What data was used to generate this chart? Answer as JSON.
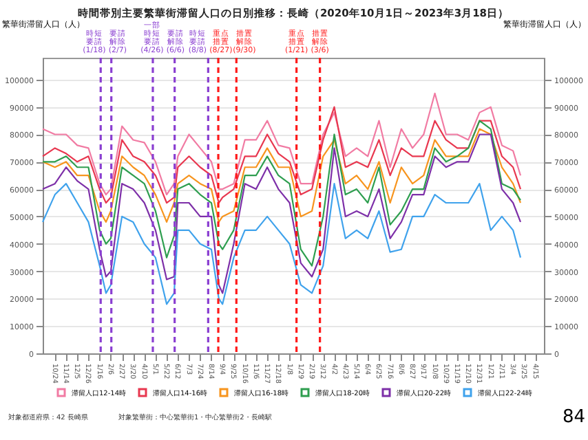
{
  "chart_data": {
    "type": "line",
    "title": "時間帯別主要繁華街滞留人口の日別推移：長崎（2020年10月1日～2023年3月18日）",
    "ylabel": "繁華街滞留人口（人）",
    "y2label": "繁華街滞留人口（人）",
    "x": [
      "2020-10-01",
      "2020-10-24",
      "2020-11-14",
      "2020-12-05",
      "2020-12-26",
      "2021-01-16",
      "2021-01-28",
      "2021-02-06",
      "2021-02-27",
      "2021-03-20",
      "2021-04-10",
      "2021-05-01",
      "2021-05-22",
      "2021-06-05",
      "2021-06-12",
      "2021-07-03",
      "2021-07-24",
      "2021-08-14",
      "2021-08-28",
      "2021-09-04",
      "2021-09-25",
      "2021-10-16",
      "2021-11-06",
      "2021-11-27",
      "2021-12-18",
      "2022-01-08",
      "2022-01-29",
      "2022-02-19",
      "2022-03-12",
      "2022-04-02",
      "2022-04-23",
      "2022-05-14",
      "2022-06-04",
      "2022-06-25",
      "2022-07-16",
      "2022-08-06",
      "2022-08-27",
      "2022-09-17",
      "2022-10-08",
      "2022-10-29",
      "2022-11-19",
      "2022-12-10",
      "2022-12-31",
      "2023-01-21",
      "2023-02-11",
      "2023-03-04",
      "2023-03-18"
    ],
    "series": [
      {
        "name": "滞留人口12-14時",
        "color": "#f17ba3",
        "values": [
          82000,
          80000,
          80000,
          76000,
          75000,
          62000,
          58000,
          60000,
          83000,
          78000,
          77000,
          70000,
          58000,
          62000,
          72000,
          80000,
          75000,
          70000,
          60000,
          60000,
          62000,
          78000,
          78000,
          85000,
          76000,
          75000,
          62000,
          62000,
          80000,
          88000,
          72000,
          75000,
          72000,
          85000,
          68000,
          82000,
          75000,
          80000,
          95000,
          80000,
          80000,
          78000,
          88000,
          90000,
          76000,
          74000,
          65000
        ]
      },
      {
        "name": "滞留人口14-16時",
        "color": "#e8374f",
        "values": [
          72000,
          75000,
          73000,
          70000,
          72000,
          60000,
          55000,
          57000,
          78000,
          72000,
          70000,
          65000,
          55000,
          57000,
          68000,
          72000,
          68000,
          65000,
          55000,
          57000,
          60000,
          72000,
          72000,
          80000,
          73000,
          70000,
          58000,
          60000,
          78000,
          90000,
          68000,
          70000,
          68000,
          78000,
          65000,
          75000,
          72000,
          72000,
          85000,
          78000,
          75000,
          75000,
          85000,
          85000,
          72000,
          68000,
          60000
        ]
      },
      {
        "name": "滞留人口16-18時",
        "color": "#f7941d",
        "values": [
          70000,
          68000,
          70000,
          65000,
          65000,
          52000,
          48000,
          52000,
          72000,
          68000,
          65000,
          58000,
          48000,
          55000,
          62000,
          65000,
          62000,
          60000,
          48000,
          50000,
          52000,
          68000,
          68000,
          75000,
          68000,
          68000,
          50000,
          52000,
          72000,
          78000,
          62000,
          65000,
          60000,
          70000,
          55000,
          68000,
          62000,
          65000,
          78000,
          72000,
          72000,
          72000,
          82000,
          80000,
          68000,
          62000,
          55000
        ]
      },
      {
        "name": "滞留人口18-20時",
        "color": "#2e9e4f",
        "values": [
          70000,
          70000,
          72000,
          68000,
          68000,
          45000,
          40000,
          42000,
          68000,
          65000,
          62000,
          52000,
          35000,
          43000,
          60000,
          62000,
          58000,
          55000,
          40000,
          38000,
          45000,
          65000,
          65000,
          72000,
          65000,
          62000,
          38000,
          32000,
          50000,
          80000,
          58000,
          60000,
          55000,
          68000,
          47000,
          52000,
          60000,
          60000,
          75000,
          70000,
          72000,
          75000,
          85000,
          82000,
          62000,
          60000,
          56000
        ]
      },
      {
        "name": "滞留人口20-22時",
        "color": "#7d2fa8",
        "values": [
          60000,
          62000,
          68000,
          63000,
          60000,
          38000,
          28000,
          30000,
          62000,
          60000,
          55000,
          45000,
          27000,
          28000,
          55000,
          55000,
          50000,
          50000,
          25000,
          22000,
          40000,
          62000,
          60000,
          68000,
          60000,
          55000,
          33000,
          28000,
          38000,
          75000,
          50000,
          52000,
          50000,
          60000,
          42000,
          48000,
          58000,
          58000,
          72000,
          68000,
          70000,
          70000,
          80000,
          80000,
          60000,
          55000,
          48000
        ]
      },
      {
        "name": "滞留人口22-24時",
        "color": "#3fa2ec",
        "values": [
          48000,
          58000,
          62000,
          55000,
          48000,
          32000,
          22000,
          25000,
          50000,
          48000,
          40000,
          35000,
          18000,
          22000,
          45000,
          45000,
          40000,
          38000,
          20000,
          18000,
          35000,
          45000,
          45000,
          50000,
          45000,
          40000,
          25000,
          22000,
          32000,
          62000,
          42000,
          45000,
          42000,
          52000,
          37000,
          38000,
          50000,
          50000,
          58000,
          55000,
          55000,
          55000,
          62000,
          45000,
          50000,
          45000,
          35000
        ]
      }
    ],
    "xlim": [
      "2020-10-01",
      "2023-05-01"
    ],
    "xticks": [
      {
        "value": "2020-10-24",
        "label": "10/24"
      },
      {
        "value": "2020-11-14",
        "label": "11/14"
      },
      {
        "value": "2020-12-05",
        "label": "12/5"
      },
      {
        "value": "2020-12-26",
        "label": "12/26"
      },
      {
        "value": "2021-01-16",
        "label": "1/16"
      },
      {
        "value": "2021-02-06",
        "label": "2/6"
      },
      {
        "value": "2021-02-27",
        "label": "2/27"
      },
      {
        "value": "2021-03-20",
        "label": "3/20"
      },
      {
        "value": "2021-04-10",
        "label": "4/10"
      },
      {
        "value": "2021-05-01",
        "label": "5/1"
      },
      {
        "value": "2021-05-22",
        "label": "5/22"
      },
      {
        "value": "2021-06-12",
        "label": "6/12"
      },
      {
        "value": "2021-07-03",
        "label": "7/3"
      },
      {
        "value": "2021-07-24",
        "label": "7/24"
      },
      {
        "value": "2021-08-14",
        "label": "8/14"
      },
      {
        "value": "2021-09-04",
        "label": "9/4"
      },
      {
        "value": "2021-09-25",
        "label": "9/25"
      },
      {
        "value": "2021-10-16",
        "label": "10/16"
      },
      {
        "value": "2021-11-06",
        "label": "11/6"
      },
      {
        "value": "2021-11-27",
        "label": "11/27"
      },
      {
        "value": "2021-12-18",
        "label": "12/18"
      },
      {
        "value": "2022-01-08",
        "label": "1/8"
      },
      {
        "value": "2022-01-29",
        "label": "1/29"
      },
      {
        "value": "2022-02-19",
        "label": "2/19"
      },
      {
        "value": "2022-03-12",
        "label": "3/12"
      },
      {
        "value": "2022-04-02",
        "label": "4/2"
      },
      {
        "value": "2022-04-23",
        "label": "4/23"
      },
      {
        "value": "2022-05-14",
        "label": "5/14"
      },
      {
        "value": "2022-06-04",
        "label": "6/4"
      },
      {
        "value": "2022-06-25",
        "label": "6/25"
      },
      {
        "value": "2022-07-16",
        "label": "7/16"
      },
      {
        "value": "2022-08-06",
        "label": "8/6"
      },
      {
        "value": "2022-08-27",
        "label": "8/27"
      },
      {
        "value": "2022-09-17",
        "label": "9/17"
      },
      {
        "value": "2022-10-08",
        "label": "10/8"
      },
      {
        "value": "2022-10-29",
        "label": "10/29"
      },
      {
        "value": "2022-11-19",
        "label": "11/19"
      },
      {
        "value": "2022-12-10",
        "label": "12/10"
      },
      {
        "value": "2022-12-31",
        "label": "12/31"
      },
      {
        "value": "2023-01-21",
        "label": "1/21"
      },
      {
        "value": "2023-02-11",
        "label": "2/11"
      },
      {
        "value": "2023-03-04",
        "label": "3/4"
      },
      {
        "value": "2023-03-25",
        "label": "3/25"
      },
      {
        "value": "2023-04-15",
        "label": "4/15"
      }
    ],
    "ylim": [
      0,
      108000
    ],
    "yticks": [
      0,
      10000,
      20000,
      30000,
      40000,
      50000,
      60000,
      70000,
      80000,
      90000,
      100000
    ],
    "y2lim": [
      0,
      108000
    ],
    "y2ticks": [
      0,
      10000,
      20000,
      30000,
      40000,
      50000,
      60000,
      70000,
      80000,
      90000,
      100000
    ],
    "ref_lines": [
      {
        "axis": "x",
        "value": "2021-01-18",
        "label": "時短要請(1/18)",
        "color": "#8a3fd1",
        "line_style": "dashed"
      },
      {
        "axis": "x",
        "value": "2021-02-07",
        "label": "要請解除(2/7)",
        "color": "#8a3fd1",
        "line_style": "dashed"
      },
      {
        "axis": "x",
        "value": "2021-04-26",
        "label": "一部時短要請(4/26)",
        "color": "#8a3fd1",
        "line_style": "dashed"
      },
      {
        "axis": "x",
        "value": "2021-06-06",
        "label": "要請解除(6/6)",
        "color": "#8a3fd1",
        "line_style": "dashed"
      },
      {
        "axis": "x",
        "value": "2021-08-08",
        "label": "時短要請(8/8)",
        "color": "#8a3fd1",
        "line_style": "dashed"
      },
      {
        "axis": "x",
        "value": "2021-08-27",
        "label": "重点措置(8/27)",
        "color": "#ff1a1a",
        "line_style": "dashed"
      },
      {
        "axis": "x",
        "value": "2021-09-30",
        "label": "措置解除(9/30)",
        "color": "#ff1a1a",
        "line_style": "dashed"
      },
      {
        "axis": "x",
        "value": "2022-01-21",
        "label": "重点措置(1/21)",
        "color": "#ff1a1a",
        "line_style": "dashed"
      },
      {
        "axis": "x",
        "value": "2022-03-06",
        "label": "措置解除(3/6)",
        "color": "#ff1a1a",
        "line_style": "dashed"
      }
    ],
    "annotations": [
      "対象都道府県：42 長崎県",
      "対象繁華街：中心繁華街1・中心繁華街2・長崎駅",
      "84"
    ],
    "legend": "bottom",
    "grid": "y",
    "marker": "none",
    "line_style": "solid"
  }
}
